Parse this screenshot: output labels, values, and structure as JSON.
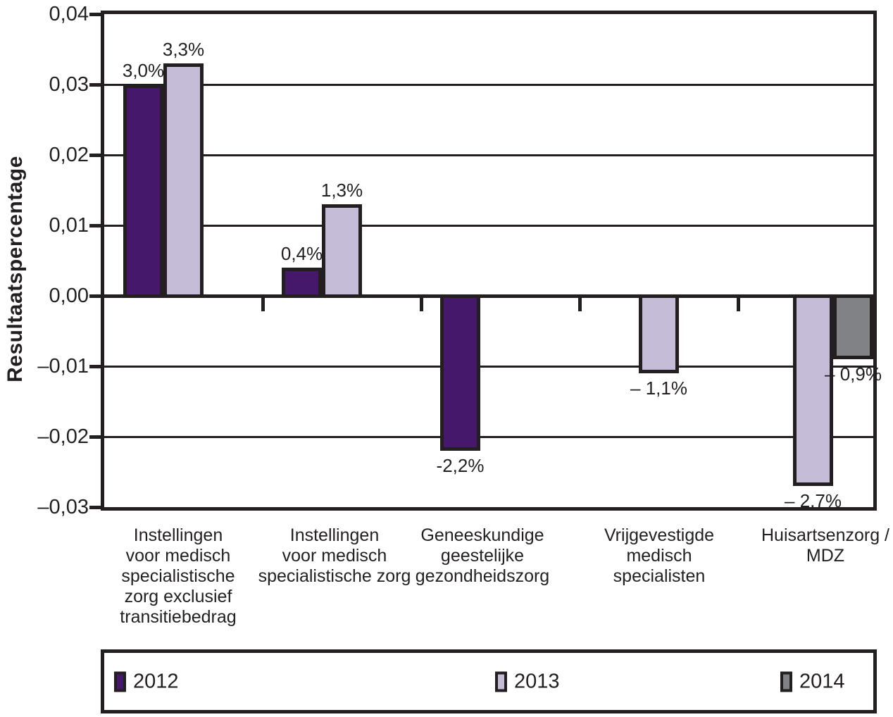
{
  "figure": {
    "background": "#ffffff",
    "line_color": "#231f20"
  },
  "chart_data": {
    "type": "bar",
    "title": "",
    "ylabel": "Resultaatspercentage",
    "xlabel": "",
    "ylim": [
      -0.03,
      0.04
    ],
    "grid": true,
    "legend_position": "bottom",
    "yticks": [
      {
        "v": 0.04,
        "label": "0,04"
      },
      {
        "v": 0.03,
        "label": "0,03"
      },
      {
        "v": 0.02,
        "label": "0,02"
      },
      {
        "v": 0.01,
        "label": "0,01"
      },
      {
        "v": 0.0,
        "label": "0,00"
      },
      {
        "v": -0.01,
        "label": "–0,01"
      },
      {
        "v": -0.02,
        "label": "–0,02"
      },
      {
        "v": -0.03,
        "label": "–0,03"
      }
    ],
    "categories": [
      {
        "label": "Instellingen\nvoor medisch\nspecialistische\nzorg exclusief\ntransitiebedrag"
      },
      {
        "label": "Instellingen\nvoor medisch\nspecialistische zorg"
      },
      {
        "label": "Geneeskundige\ngeestelijke\ngezondheidszorg"
      },
      {
        "label": "Vrijgevestigde\nmedisch\nspecialisten"
      },
      {
        "label": "Huisartsenzorg /\nMDZ"
      }
    ],
    "series": [
      {
        "name": "2012",
        "color": "#45186b",
        "values": [
          0.03,
          0.004,
          -0.022,
          null,
          null
        ],
        "value_labels": [
          "3,0%",
          "0,4%",
          "-2,2%",
          null,
          null
        ]
      },
      {
        "name": "2013",
        "color": "#c5bdd8",
        "values": [
          0.033,
          0.013,
          null,
          -0.011,
          -0.027
        ],
        "value_labels": [
          "3,3%",
          "1,3%",
          null,
          "– 1,1%",
          "– 2,7%"
        ]
      },
      {
        "name": "2014",
        "color": "#808285",
        "values": [
          null,
          null,
          null,
          null,
          -0.009
        ],
        "value_labels": [
          null,
          null,
          null,
          null,
          "– 0,9%"
        ]
      }
    ]
  }
}
